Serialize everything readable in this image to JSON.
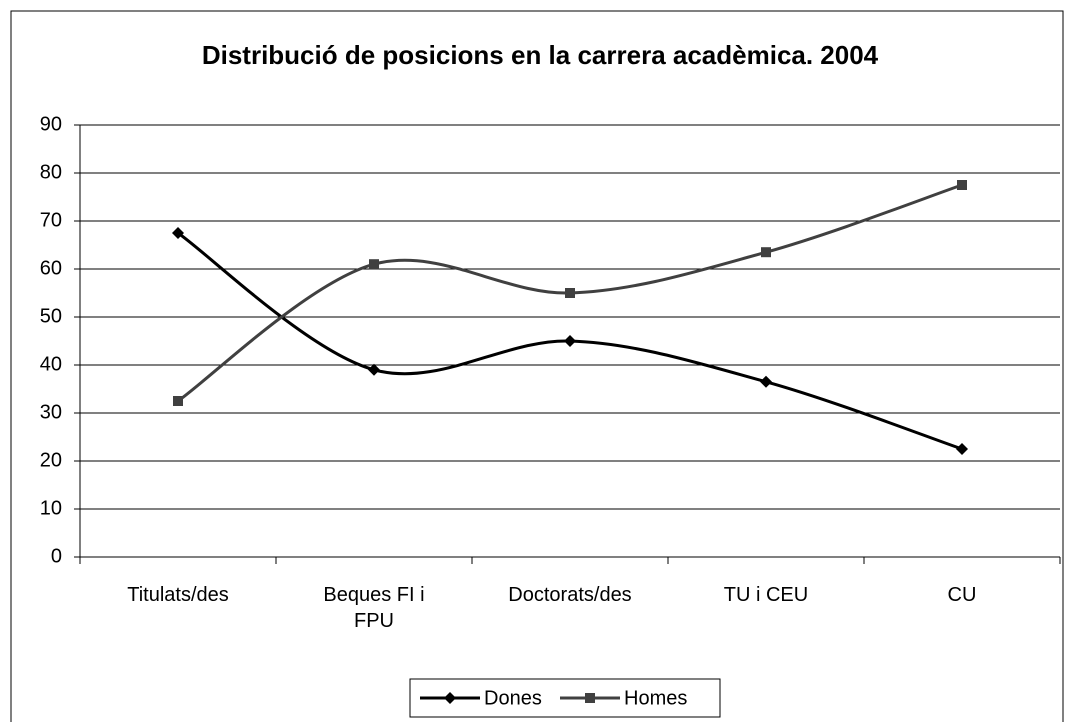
{
  "chart_data": {
    "type": "line",
    "title": "Distribució de posicions en la carrera acadèmica.  2004",
    "categories": [
      "Titulats/des",
      "Beques FI i\nFPU",
      "Doctorats/des",
      "TU i CEU",
      "CU"
    ],
    "series": [
      {
        "name": "Dones",
        "color": "#000000",
        "marker": "diamond",
        "values": [
          67.5,
          39,
          45,
          36.5,
          22.5
        ]
      },
      {
        "name": "Homes",
        "color": "#404040",
        "marker": "square",
        "values": [
          32.5,
          61,
          55,
          63.5,
          77.5
        ]
      }
    ],
    "ylim": [
      0,
      90
    ],
    "yticks": [
      0,
      10,
      20,
      30,
      40,
      50,
      60,
      70,
      80,
      90
    ],
    "grid": true,
    "smooth": true,
    "legend": "bottom"
  }
}
